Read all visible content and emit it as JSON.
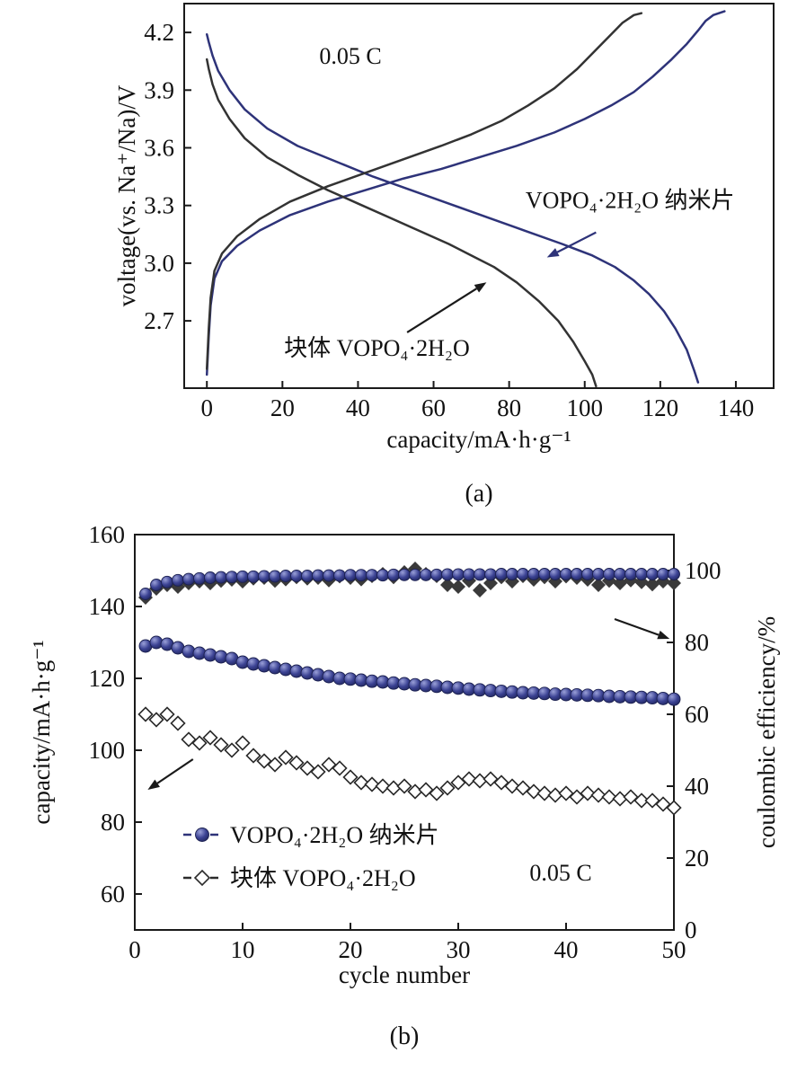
{
  "figure": {
    "panel_a_caption": "(a)",
    "panel_b_caption": "(b)"
  },
  "colors": {
    "nanosheet_blue": "#2e3379",
    "bulk_black": "#333333",
    "frame": "#1a1a1a"
  },
  "chart_data": [
    {
      "id": "chart-a",
      "type": "line",
      "title": "",
      "xlabel": "capacity/mA·h·g⁻¹",
      "ylabel": "voltage(vs. Na⁺/Na)/V",
      "xlim": [
        -6,
        150
      ],
      "ylim": [
        2.35,
        4.35
      ],
      "xticks": [
        "0",
        "20",
        "40",
        "60",
        "80",
        "100",
        "120",
        "140"
      ],
      "yticks": [
        "2.7",
        "3.0",
        "3.3",
        "3.6",
        "3.9",
        "4.2"
      ],
      "grid": false,
      "annotations": [
        {
          "key": "rate-annotation",
          "text": "0.05 C",
          "x": 38,
          "y": 4.08,
          "color": "#1a1a1a"
        },
        {
          "key": "nanosheet-curve-label",
          "text": "VOPO₄·2H₂O 纳米片",
          "x": 112,
          "y": 3.33,
          "color": "#2e3379"
        },
        {
          "key": "bulk-curve-label",
          "text": "块体 VOPO₄·2H₂O",
          "x": 45,
          "y": 2.56,
          "color": "#1a1a1a"
        }
      ],
      "arrows": [
        {
          "key": "nanosheet-arrow",
          "from": [
            103,
            3.16
          ],
          "to": [
            90,
            3.03
          ],
          "color": "#2e3379"
        },
        {
          "key": "bulk-arrow",
          "from": [
            53,
            2.64
          ],
          "to": [
            74,
            2.9
          ],
          "color": "#1a1a1a"
        }
      ],
      "series": [
        {
          "key": "nanosheet-charge",
          "name": "VOPO₄·2H₂O 纳米片 charge",
          "color": "#2e3379",
          "x": [
            0,
            0.5,
            1,
            2,
            4,
            8,
            14,
            22,
            32,
            42,
            52,
            62,
            72,
            82,
            92,
            100,
            107,
            113,
            118,
            123,
            127,
            130,
            132,
            134,
            137
          ],
          "y": [
            2.42,
            2.62,
            2.78,
            2.92,
            3.01,
            3.09,
            3.17,
            3.25,
            3.32,
            3.38,
            3.44,
            3.49,
            3.55,
            3.61,
            3.68,
            3.75,
            3.82,
            3.89,
            3.97,
            4.06,
            4.14,
            4.21,
            4.26,
            4.29,
            4.31
          ]
        },
        {
          "key": "nanosheet-discharge",
          "name": "VOPO₄·2H₂O 纳米片 discharge",
          "color": "#2e3379",
          "x": [
            0,
            0.5,
            1.5,
            3,
            6,
            10,
            16,
            24,
            34,
            44,
            54,
            64,
            74,
            84,
            94,
            102,
            108,
            113,
            117,
            121,
            124,
            127,
            129,
            130
          ],
          "y": [
            4.19,
            4.15,
            4.08,
            4.0,
            3.9,
            3.8,
            3.7,
            3.61,
            3.53,
            3.45,
            3.38,
            3.31,
            3.24,
            3.17,
            3.1,
            3.04,
            2.98,
            2.91,
            2.84,
            2.75,
            2.66,
            2.55,
            2.44,
            2.38
          ]
        },
        {
          "key": "bulk-charge",
          "name": "块体 VOPO₄·2H₂O charge",
          "color": "#333333",
          "x": [
            0,
            0.5,
            1,
            2,
            4,
            8,
            14,
            22,
            32,
            42,
            52,
            62,
            70,
            78,
            85,
            92,
            98,
            103,
            107,
            110,
            113,
            115
          ],
          "y": [
            2.45,
            2.66,
            2.82,
            2.96,
            3.05,
            3.14,
            3.23,
            3.32,
            3.4,
            3.47,
            3.54,
            3.61,
            3.67,
            3.74,
            3.82,
            3.91,
            4.01,
            4.11,
            4.19,
            4.25,
            4.29,
            4.3
          ]
        },
        {
          "key": "bulk-discharge",
          "name": "块体 VOPO₄·2H₂O discharge",
          "color": "#333333",
          "x": [
            0,
            0.5,
            1.5,
            3,
            6,
            10,
            16,
            24,
            32,
            40,
            48,
            56,
            64,
            70,
            76,
            82,
            88,
            93,
            97,
            100,
            102,
            103
          ],
          "y": [
            4.06,
            4.01,
            3.93,
            3.85,
            3.75,
            3.65,
            3.55,
            3.46,
            3.38,
            3.31,
            3.24,
            3.17,
            3.1,
            3.04,
            2.98,
            2.9,
            2.8,
            2.7,
            2.59,
            2.49,
            2.42,
            2.36
          ]
        }
      ]
    },
    {
      "id": "chart-b",
      "type": "scatter",
      "title": "",
      "xlabel": "cycle number",
      "ylabel_left": "capacity/mA·h·g⁻¹",
      "ylabel_right": "coulombic efficiency/%",
      "xlim": [
        0,
        50
      ],
      "ylim_left": [
        50,
        160
      ],
      "ylim_right": [
        0,
        110
      ],
      "xticks": [
        "0",
        "10",
        "20",
        "30",
        "40",
        "50"
      ],
      "yticks_left": [
        "60",
        "80",
        "100",
        "120",
        "140",
        "160"
      ],
      "yticks_right": [
        "0",
        "20",
        "40",
        "60",
        "80",
        "100"
      ],
      "grid": false,
      "annotations": [
        {
          "key": "rate-annotation",
          "text": "0.05 C",
          "x": 39.5,
          "y": 66,
          "color": "#1a1a1a"
        }
      ],
      "arrows": [
        {
          "key": "capacity-axis-arrow",
          "from": [
            5.4,
            97.5
          ],
          "to": [
            1.2,
            89
          ],
          "color": "#1a1a1a"
        },
        {
          "key": "efficiency-axis-arrow",
          "from": [
            44.5,
            136.5
          ],
          "to": [
            49.6,
            131
          ],
          "color": "#1a1a1a"
        }
      ],
      "legend": {
        "x": 4.5,
        "items": [
          {
            "key": "legend-nanosheet",
            "label": "VOPO₄·2H₂O 纳米片",
            "marker": "circle",
            "color": "#2e3379",
            "y": 76.5
          },
          {
            "key": "legend-bulk",
            "label": "块体 VOPO₄·2H₂O",
            "marker": "diamond-open",
            "color": "#2b2b2b",
            "y": 64.5
          }
        ]
      },
      "x": [
        1,
        2,
        3,
        4,
        5,
        6,
        7,
        8,
        9,
        10,
        11,
        12,
        13,
        14,
        15,
        16,
        17,
        18,
        19,
        20,
        21,
        22,
        23,
        24,
        25,
        26,
        27,
        28,
        29,
        30,
        31,
        32,
        33,
        34,
        35,
        36,
        37,
        38,
        39,
        40,
        41,
        42,
        43,
        44,
        45,
        46,
        47,
        48,
        49,
        50
      ],
      "series": [
        {
          "key": "bulk-coulombic-efficiency",
          "name": "块体 VOPO₄·2H₂O coulombic efficiency",
          "axis": "right",
          "marker": "diamond",
          "size": 8,
          "color": "#3a3a3a",
          "values": [
            92.5,
            95,
            96,
            95.5,
            96.5,
            97,
            96.5,
            97.2,
            97.5,
            97,
            97.8,
            98,
            97.2,
            97.6,
            98.2,
            97.8,
            98,
            97.3,
            98.4,
            98,
            97.6,
            98.5,
            99,
            98.2,
            99.5,
            100.5,
            99,
            98.5,
            96,
            95.5,
            97.2,
            94.5,
            96.5,
            98.2,
            97,
            98.5,
            97.5,
            98.2,
            97,
            98.4,
            98,
            97.5,
            96,
            97.2,
            96.5,
            97.3,
            96.8,
            96.2,
            97,
            96.5
          ]
        },
        {
          "key": "nanosheet-coulombic-efficiency",
          "name": "VOPO₄·2H₂O 纳米片 coulombic efficiency",
          "axis": "right",
          "marker": "circle",
          "size": 6.5,
          "color": "#2e3379",
          "values": [
            93.5,
            96,
            96.8,
            97.3,
            97.6,
            97.8,
            98,
            98.1,
            98.2,
            98.3,
            98.3,
            98.4,
            98.4,
            98.5,
            98.5,
            98.5,
            98.6,
            98.6,
            98.6,
            98.7,
            98.7,
            98.7,
            98.7,
            98.8,
            98.8,
            98.8,
            98.8,
            98.8,
            98.9,
            98.9,
            98.9,
            98.9,
            98.9,
            99,
            99,
            99,
            99,
            99,
            99,
            99,
            99,
            99,
            99,
            99,
            99,
            99,
            99,
            99,
            99,
            99
          ]
        },
        {
          "key": "bulk-capacity",
          "name": "块体 VOPO₄·2H₂O capacity",
          "axis": "left",
          "marker": "diamond-open",
          "size": 7.5,
          "color": "#2b2b2b",
          "values": [
            110,
            108.5,
            110,
            107.5,
            103,
            102,
            103.5,
            101.5,
            100,
            102,
            98.5,
            97,
            96,
            98,
            96.5,
            95,
            94,
            96,
            95,
            92.5,
            91,
            90.5,
            90,
            89.5,
            90,
            88.5,
            89,
            88,
            89.5,
            91,
            92,
            91.5,
            92,
            91,
            90,
            89.5,
            88.5,
            88,
            87.5,
            88,
            87,
            88,
            87.5,
            87,
            86.5,
            87,
            86,
            86,
            85,
            84
          ]
        },
        {
          "key": "nanosheet-capacity",
          "name": "VOPO₄·2H₂O 纳米片 capacity",
          "axis": "left",
          "marker": "circle",
          "size": 7,
          "color": "#2e3379",
          "values": [
            129,
            130,
            129.5,
            128.5,
            127.5,
            127,
            126.5,
            126,
            125.5,
            124.5,
            124,
            123.5,
            123,
            122.5,
            122,
            121.5,
            121,
            120.5,
            120,
            119.8,
            119.5,
            119.2,
            119,
            118.7,
            118.5,
            118.2,
            118,
            117.8,
            117.5,
            117.3,
            117,
            116.8,
            116.6,
            116.4,
            116.2,
            116,
            115.9,
            115.8,
            115.6,
            115.5,
            115.4,
            115.3,
            115.2,
            115,
            114.9,
            114.8,
            114.7,
            114.6,
            114.4,
            114.2
          ]
        }
      ]
    }
  ]
}
